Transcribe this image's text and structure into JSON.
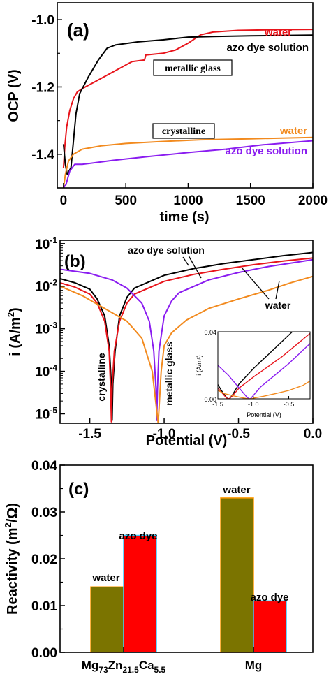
{
  "colors": {
    "black": "#000000",
    "red": "#e8141b",
    "orange": "#f28a1e",
    "purple": "#8a1cf0",
    "olive": "#7b7400",
    "bar_red": "#ff0000",
    "bar_edge_olive": "#ff9900",
    "bar_edge_red": "#33ccff"
  },
  "chart_data": [
    {
      "type": "line",
      "panel_label": "(a)",
      "xlabel": "time (s)",
      "ylabel": "OCP (V)",
      "xlim": [
        -50,
        2000
      ],
      "ylim": [
        -1.5,
        -0.95
      ],
      "xticks": [
        0,
        500,
        1000,
        1500,
        2000
      ],
      "xtick_labels": [
        "0",
        "500",
        "1000",
        "1500",
        "2000"
      ],
      "yticks": [
        -1.4,
        -1.2,
        -1.0
      ],
      "ytick_labels": [
        "-1.4",
        "-1.2",
        "-1.0"
      ],
      "boxed_labels": [
        "metallic glass",
        "crystalline"
      ],
      "series": [
        {
          "name": "water",
          "color_key": "red",
          "points": [
            [
              0,
              -1.44
            ],
            [
              10,
              -1.38
            ],
            [
              25,
              -1.32
            ],
            [
              50,
              -1.27
            ],
            [
              80,
              -1.235
            ],
            [
              110,
              -1.215
            ],
            [
              150,
              -1.205
            ],
            [
              250,
              -1.185
            ],
            [
              400,
              -1.155
            ],
            [
              550,
              -1.125
            ],
            [
              650,
              -1.12
            ],
            [
              660,
              -1.105
            ],
            [
              800,
              -1.1
            ],
            [
              900,
              -1.09
            ],
            [
              1000,
              -1.07
            ],
            [
              1100,
              -1.045
            ],
            [
              1200,
              -1.037
            ],
            [
              1400,
              -1.032
            ],
            [
              1700,
              -1.03
            ],
            [
              2000,
              -1.029
            ]
          ]
        },
        {
          "name": "azo dye solution",
          "color_key": "black",
          "points": [
            [
              0,
              -1.37
            ],
            [
              15,
              -1.43
            ],
            [
              30,
              -1.46
            ],
            [
              60,
              -1.44
            ],
            [
              80,
              -1.36
            ],
            [
              100,
              -1.28
            ],
            [
              130,
              -1.22
            ],
            [
              200,
              -1.17
            ],
            [
              280,
              -1.12
            ],
            [
              350,
              -1.085
            ],
            [
              420,
              -1.075
            ],
            [
              600,
              -1.066
            ],
            [
              800,
              -1.06
            ],
            [
              1000,
              -1.052
            ],
            [
              1200,
              -1.05
            ],
            [
              1500,
              -1.048
            ],
            [
              2000,
              -1.046
            ]
          ]
        },
        {
          "name": "water",
          "color_key": "orange",
          "points": [
            [
              0,
              -1.5
            ],
            [
              15,
              -1.46
            ],
            [
              40,
              -1.42
            ],
            [
              80,
              -1.4
            ],
            [
              150,
              -1.385
            ],
            [
              300,
              -1.375
            ],
            [
              500,
              -1.368
            ],
            [
              800,
              -1.362
            ],
            [
              1100,
              -1.357
            ],
            [
              1500,
              -1.354
            ],
            [
              2000,
              -1.35
            ]
          ]
        },
        {
          "name": "azo dye solution",
          "color_key": "purple",
          "points": [
            [
              0,
              -1.5
            ],
            [
              20,
              -1.49
            ],
            [
              50,
              -1.45
            ],
            [
              90,
              -1.43
            ],
            [
              150,
              -1.43
            ],
            [
              400,
              -1.418
            ],
            [
              700,
              -1.406
            ],
            [
              1000,
              -1.395
            ],
            [
              1300,
              -1.385
            ],
            [
              1600,
              -1.372
            ],
            [
              2000,
              -1.36
            ]
          ]
        }
      ]
    },
    {
      "type": "line",
      "panel_label": "(b)",
      "xlabel": "Potential (V)",
      "ylabel_parts": [
        "i (A/m",
        "2",
        ")"
      ],
      "yscale": "log",
      "xlim": [
        -1.7,
        0.0
      ],
      "ylim": [
        6e-06,
        0.12
      ],
      "xticks": [
        -1.5,
        -1.0,
        -0.5,
        0.0
      ],
      "xtick_labels": [
        "-1.5",
        "-1.0",
        "-0.5",
        "0.0"
      ],
      "yticks": [
        1e-05,
        0.0001,
        0.001,
        0.01,
        0.1
      ],
      "ytick_labels": [
        [
          "10",
          "-5"
        ],
        [
          "10",
          "-4"
        ],
        [
          "10",
          "-3"
        ],
        [
          "10",
          "-2"
        ],
        [
          "10",
          "-1"
        ]
      ],
      "annotations": [
        "azo dye solution",
        "water"
      ],
      "rotated_labels": [
        "crystalline",
        "metallic glass"
      ],
      "series": [
        {
          "name": "crystalline, azo dye solution",
          "color_key": "black",
          "points": [
            [
              -1.7,
              0.015
            ],
            [
              -1.6,
              0.012
            ],
            [
              -1.5,
              0.0085
            ],
            [
              -1.45,
              0.005
            ],
            [
              -1.4,
              0.002
            ],
            [
              -1.37,
              0.0004
            ],
            [
              -1.355,
              5e-05
            ],
            [
              -1.35,
              7e-06
            ],
            [
              -1.345,
              5e-05
            ],
            [
              -1.33,
              0.0003
            ],
            [
              -1.3,
              0.002
            ],
            [
              -1.25,
              0.0055
            ],
            [
              -1.2,
              0.009
            ],
            [
              -1.0,
              0.018
            ],
            [
              -0.8,
              0.026
            ],
            [
              -0.6,
              0.034
            ],
            [
              -0.4,
              0.042
            ],
            [
              -0.2,
              0.052
            ],
            [
              0.0,
              0.062
            ]
          ]
        },
        {
          "name": "crystalline, water",
          "color_key": "red",
          "points": [
            [
              -1.7,
              0.012
            ],
            [
              -1.6,
              0.0095
            ],
            [
              -1.5,
              0.0065
            ],
            [
              -1.45,
              0.004
            ],
            [
              -1.4,
              0.0015
            ],
            [
              -1.37,
              0.0003
            ],
            [
              -1.36,
              4e-05
            ],
            [
              -1.355,
              6.5e-06
            ],
            [
              -1.35,
              4e-05
            ],
            [
              -1.335,
              0.0003
            ],
            [
              -1.3,
              0.0015
            ],
            [
              -1.25,
              0.004
            ],
            [
              -1.2,
              0.0065
            ],
            [
              -1.0,
              0.013
            ],
            [
              -0.8,
              0.019
            ],
            [
              -0.6,
              0.025
            ],
            [
              -0.4,
              0.032
            ],
            [
              -0.2,
              0.039
            ],
            [
              0.0,
              0.046
            ]
          ]
        },
        {
          "name": "metallic glass, azo dye solution",
          "color_key": "purple",
          "points": [
            [
              -1.7,
              0.025
            ],
            [
              -1.5,
              0.02
            ],
            [
              -1.35,
              0.014
            ],
            [
              -1.25,
              0.009
            ],
            [
              -1.15,
              0.004
            ],
            [
              -1.1,
              0.0015
            ],
            [
              -1.07,
              0.0003
            ],
            [
              -1.055,
              4e-05
            ],
            [
              -1.05,
              7e-06
            ],
            [
              -1.045,
              4e-05
            ],
            [
              -1.035,
              0.0003
            ],
            [
              -1.0,
              0.002
            ],
            [
              -0.95,
              0.0045
            ],
            [
              -0.9,
              0.007
            ],
            [
              -0.7,
              0.014
            ],
            [
              -0.5,
              0.021
            ],
            [
              -0.3,
              0.029
            ],
            [
              -0.1,
              0.037
            ],
            [
              0.0,
              0.042
            ]
          ]
        },
        {
          "name": "metallic glass, water",
          "color_key": "orange",
          "points": [
            [
              -1.7,
              0.01
            ],
            [
              -1.55,
              0.006
            ],
            [
              -1.4,
              0.003
            ],
            [
              -1.25,
              0.0015
            ],
            [
              -1.15,
              0.0006
            ],
            [
              -1.08,
              0.0001
            ],
            [
              -1.04,
              6e-06
            ],
            [
              -1.02,
              0.0001
            ],
            [
              -1.0,
              0.0004
            ],
            [
              -0.95,
              0.0008
            ],
            [
              -0.85,
              0.0016
            ],
            [
              -0.7,
              0.003
            ],
            [
              -0.5,
              0.005
            ],
            [
              -0.3,
              0.008
            ],
            [
              -0.15,
              0.012
            ],
            [
              0.0,
              0.017
            ]
          ]
        }
      ],
      "inset": {
        "xlabel": "Potential (V)",
        "ylabel": "i (A/m²)",
        "xlim": [
          -1.5,
          -0.2
        ],
        "ylim": [
          0,
          0.04
        ],
        "xticks": [
          -1.5,
          -1.0,
          -0.5
        ],
        "xtick_labels": [
          "-1.5",
          "-1.0",
          "-0.5"
        ],
        "yticks": [
          0,
          0.04
        ],
        "ytick_labels": [
          "0.00",
          "0.04"
        ]
      }
    },
    {
      "type": "bar",
      "panel_label": "(c)",
      "ylabel_parts": [
        "Reactivity (m",
        "2",
        "/Ω)"
      ],
      "ylim": [
        0,
        0.04
      ],
      "yticks": [
        0,
        0.01,
        0.02,
        0.03,
        0.04
      ],
      "ytick_labels": [
        "0.00",
        "0.01",
        "0.02",
        "0.03",
        "0.04"
      ],
      "categories": [
        {
          "label_parts": [
            [
              "Mg",
              ""
            ],
            [
              "73",
              "sub"
            ],
            [
              "Zn",
              ""
            ],
            [
              "21.5",
              "sub"
            ],
            [
              "Ca",
              ""
            ],
            [
              "5.5",
              "sub"
            ]
          ]
        },
        {
          "label_parts": [
            [
              "Mg",
              ""
            ]
          ]
        }
      ],
      "series": [
        {
          "name": "water",
          "color_key": "olive",
          "edge_key": "bar_edge_olive",
          "values": [
            0.014,
            0.033
          ]
        },
        {
          "name": "azo dye",
          "color_key": "bar_red",
          "edge_key": "bar_edge_red",
          "values": [
            0.025,
            0.011
          ]
        }
      ]
    }
  ],
  "labels": {
    "a_water": "water",
    "a_azo": "azo dye solution",
    "a_metallic_glass": "metallic glass",
    "a_crystalline": "crystalline",
    "a_water2": "water",
    "a_azo2": "azo dye solution",
    "b_azo": "azo dye solution",
    "b_water": "water",
    "b_crystalline": "crystalline",
    "b_metallic_glass": "metallic glass",
    "c_water1": "water",
    "c_azo1": "azo dye",
    "c_water2": "water",
    "c_azo2": "azo dye"
  }
}
